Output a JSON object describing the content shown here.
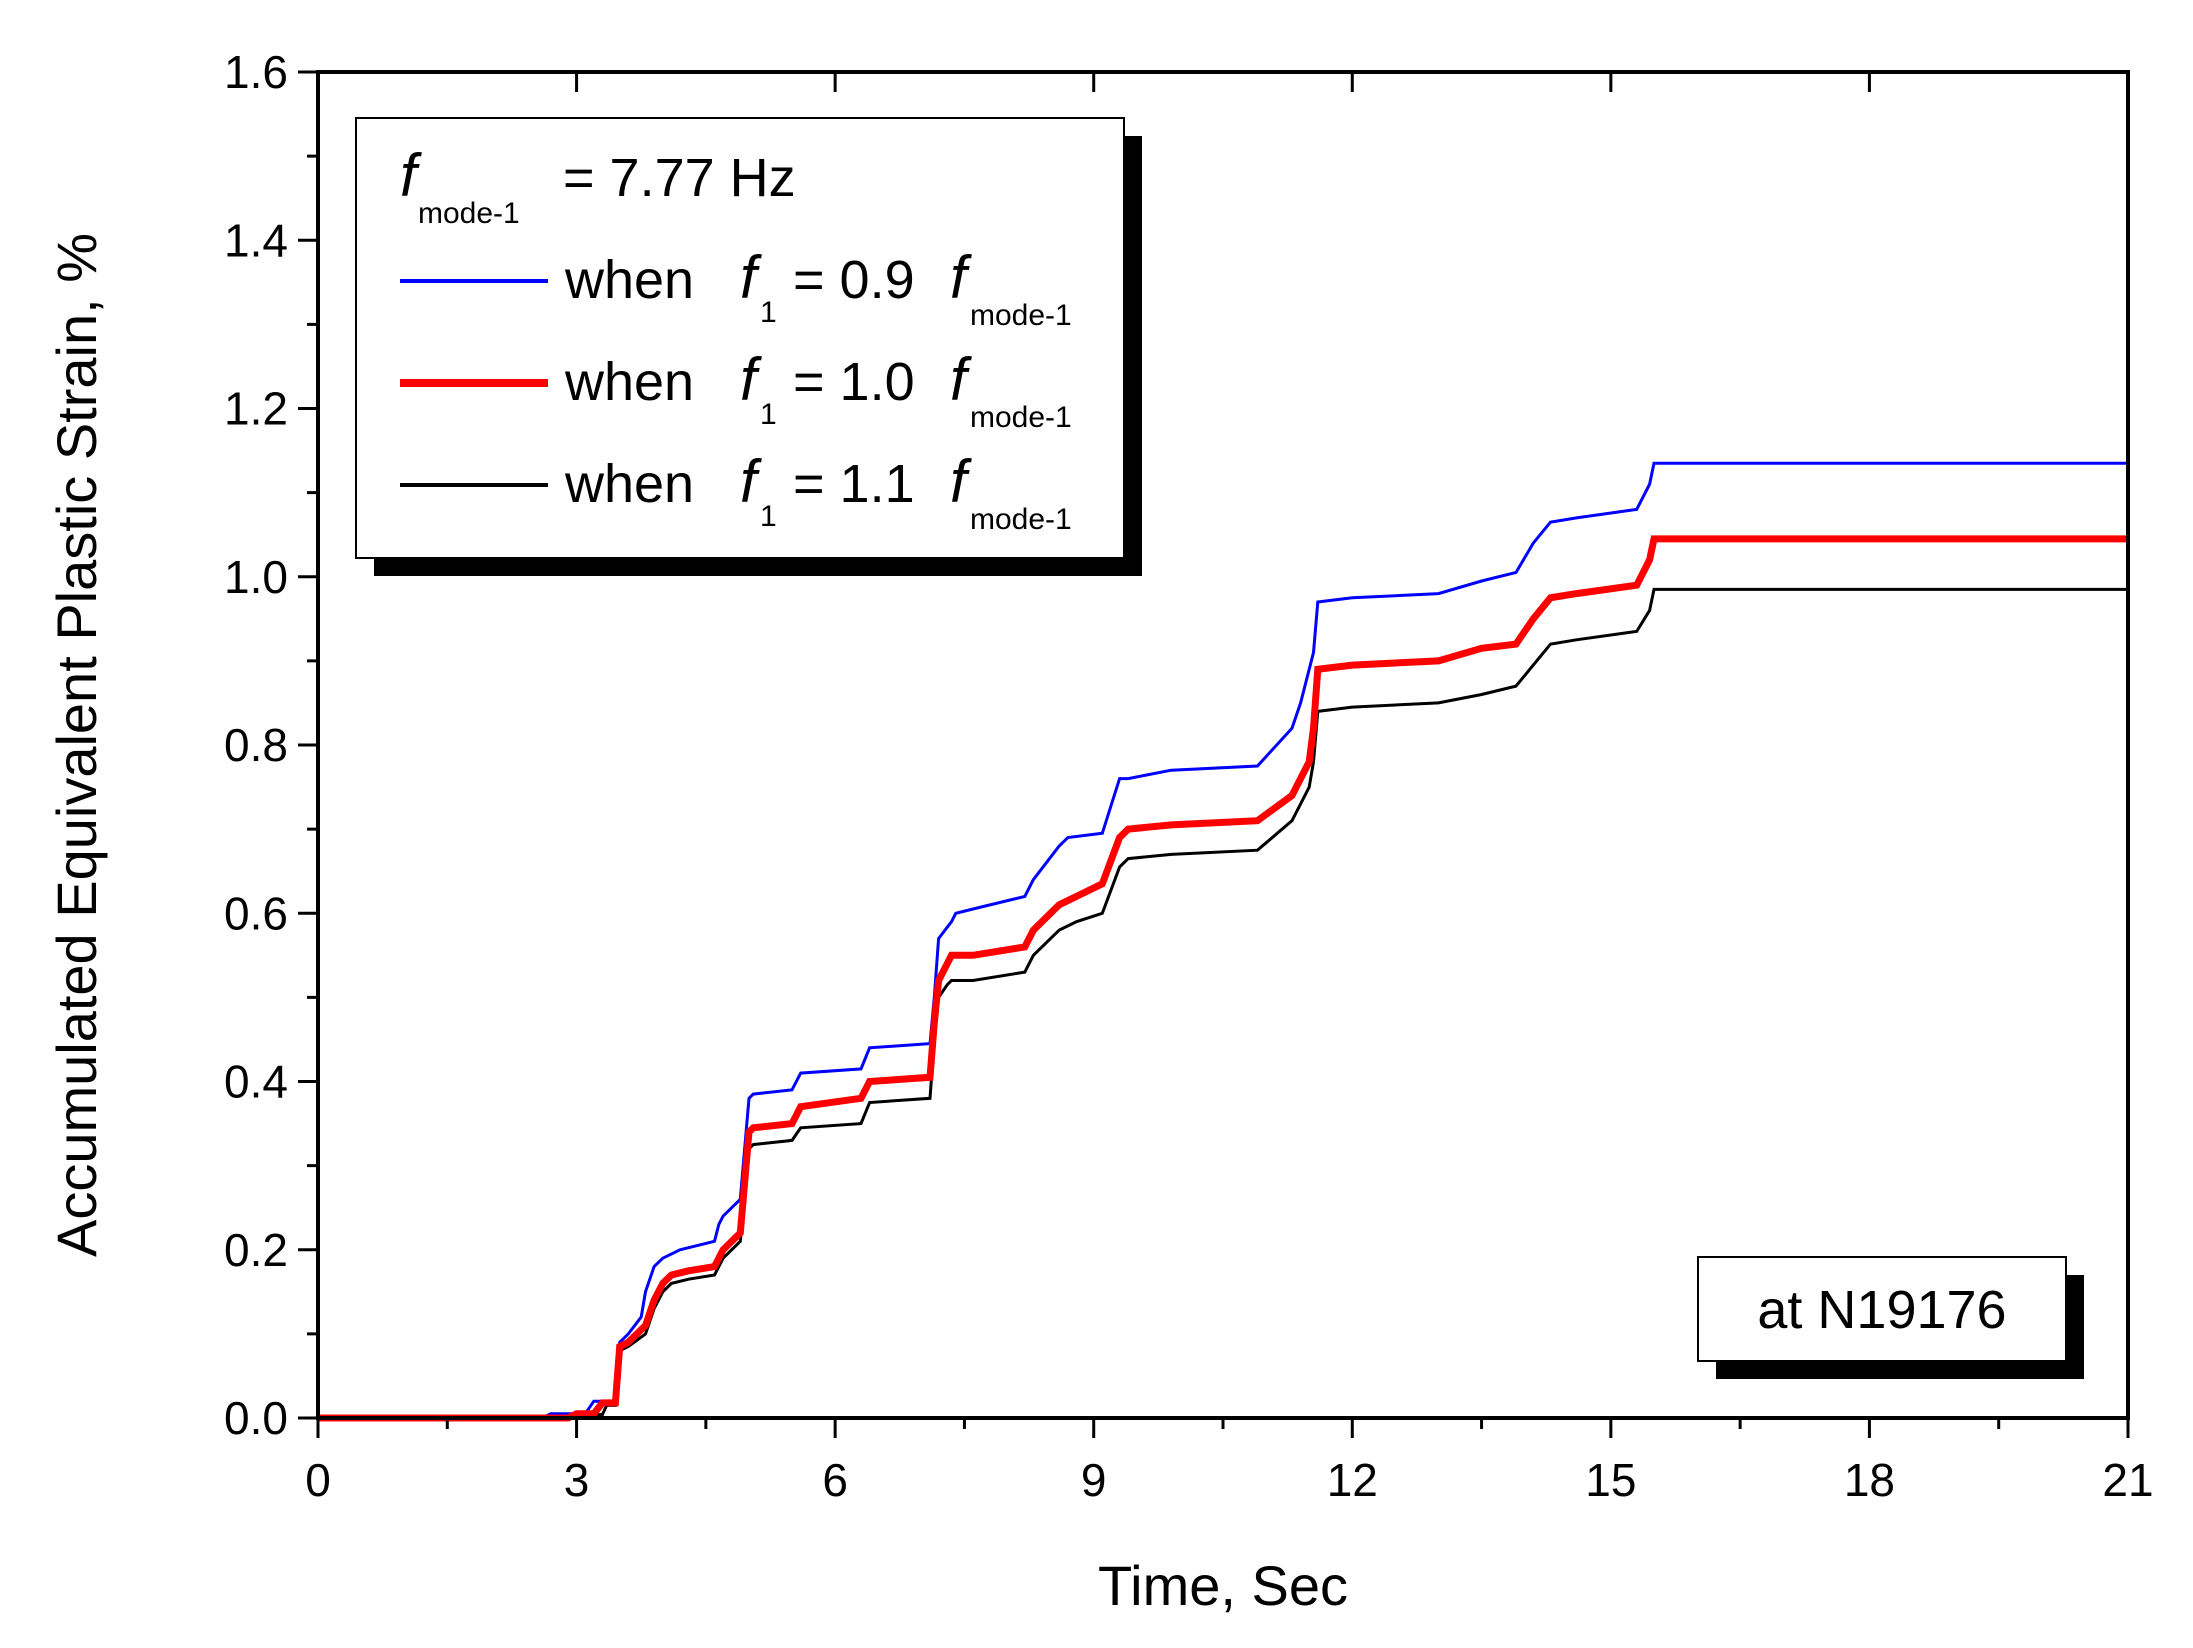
{
  "chart_data": {
    "type": "line",
    "title": "",
    "xlabel": "Time, Sec",
    "ylabel": "Accumulated Equivalent Plastic Strain, %",
    "xlim": [
      0,
      21
    ],
    "ylim": [
      0,
      1.6
    ],
    "x_ticks": [
      0,
      3,
      6,
      9,
      12,
      15,
      18,
      21
    ],
    "x_tick_labels": [
      "0",
      "3",
      "6",
      "9",
      "12",
      "15",
      "18",
      "21"
    ],
    "y_ticks": [
      0.0,
      0.2,
      0.4,
      0.6,
      0.8,
      1.0,
      1.2,
      1.4,
      1.6
    ],
    "y_tick_labels": [
      "0.0",
      "0.2",
      "0.4",
      "0.6",
      "0.8",
      "1.0",
      "1.2",
      "1.4",
      "1.6"
    ],
    "grid": false,
    "legend": {
      "placement": "top-left",
      "header": {
        "symbol": "f",
        "subscript": "mode-1",
        "text": "= 7.77 Hz"
      }
    },
    "annotation": "at N19176",
    "series": [
      {
        "name": "when f1 = 0.9fmode-1",
        "label_parts": {
          "when": "when",
          "f": "f",
          "sub1": "1",
          "eq": "= 0.9",
          "f2": "f",
          "sub2": "mode-1"
        },
        "color": "#0000ff",
        "width": "thin",
        "x": [
          0,
          2.6,
          2.7,
          3.1,
          3.2,
          3.45,
          3.5,
          3.6,
          3.75,
          3.8,
          3.9,
          4.0,
          4.2,
          4.6,
          4.65,
          4.7,
          4.9,
          5.0,
          5.05,
          5.5,
          5.6,
          6.3,
          6.4,
          7.1,
          7.15,
          7.2,
          7.35,
          7.4,
          7.6,
          8.2,
          8.3,
          8.6,
          8.7,
          9.1,
          9.3,
          9.4,
          9.9,
          10.9,
          11.3,
          11.4,
          11.45,
          11.55,
          11.6,
          12.0,
          13.0,
          13.5,
          13.9,
          14.1,
          14.3,
          14.6,
          15.3,
          15.45,
          15.5,
          21
        ],
        "y": [
          0.0,
          0.0,
          0.005,
          0.005,
          0.02,
          0.02,
          0.09,
          0.1,
          0.12,
          0.15,
          0.18,
          0.19,
          0.2,
          0.21,
          0.23,
          0.24,
          0.26,
          0.38,
          0.385,
          0.39,
          0.41,
          0.415,
          0.44,
          0.445,
          0.5,
          0.57,
          0.59,
          0.6,
          0.605,
          0.62,
          0.64,
          0.68,
          0.69,
          0.695,
          0.76,
          0.76,
          0.77,
          0.775,
          0.82,
          0.85,
          0.87,
          0.91,
          0.97,
          0.975,
          0.98,
          0.995,
          1.005,
          1.04,
          1.065,
          1.07,
          1.08,
          1.11,
          1.135,
          1.135
        ]
      },
      {
        "name": "when f1 = 1.0fmode-1",
        "label_parts": {
          "when": "when",
          "f": "f",
          "sub1": "1",
          "eq": "= 1.0",
          "f2": "f",
          "sub2": "mode-1"
        },
        "color": "#ff0000",
        "width": "thick",
        "x": [
          0,
          2.9,
          3.0,
          3.2,
          3.3,
          3.45,
          3.5,
          3.6,
          3.8,
          3.9,
          4.0,
          4.1,
          4.3,
          4.6,
          4.65,
          4.7,
          4.9,
          5.0,
          5.05,
          5.5,
          5.6,
          6.3,
          6.4,
          7.1,
          7.15,
          7.2,
          7.3,
          7.35,
          7.6,
          8.2,
          8.3,
          8.6,
          8.8,
          9.1,
          9.3,
          9.4,
          9.9,
          10.9,
          11.3,
          11.4,
          11.5,
          11.55,
          11.6,
          12.0,
          13.0,
          13.5,
          13.9,
          14.1,
          14.3,
          14.6,
          15.3,
          15.45,
          15.5,
          21
        ],
        "y": [
          0.0,
          0.0,
          0.005,
          0.005,
          0.018,
          0.018,
          0.085,
          0.09,
          0.11,
          0.14,
          0.16,
          0.17,
          0.175,
          0.18,
          0.19,
          0.2,
          0.22,
          0.34,
          0.345,
          0.35,
          0.37,
          0.38,
          0.4,
          0.405,
          0.47,
          0.52,
          0.54,
          0.55,
          0.55,
          0.56,
          0.58,
          0.61,
          0.62,
          0.635,
          0.69,
          0.7,
          0.705,
          0.71,
          0.74,
          0.76,
          0.78,
          0.82,
          0.89,
          0.895,
          0.9,
          0.915,
          0.92,
          0.95,
          0.975,
          0.98,
          0.99,
          1.02,
          1.045,
          1.045
        ]
      },
      {
        "name": "when f1 = 1.1fmode-1",
        "label_parts": {
          "when": "when",
          "f": "f",
          "sub1": "1",
          "eq": "= 1.1",
          "f2": "f",
          "sub2": "mode-1"
        },
        "color": "#000000",
        "width": "thin",
        "x": [
          0,
          3.0,
          3.1,
          3.3,
          3.35,
          3.45,
          3.5,
          3.6,
          3.8,
          3.9,
          4.0,
          4.1,
          4.3,
          4.6,
          4.65,
          4.7,
          4.9,
          5.0,
          5.05,
          5.5,
          5.6,
          6.3,
          6.4,
          7.1,
          7.15,
          7.2,
          7.3,
          7.35,
          7.6,
          8.2,
          8.3,
          8.6,
          8.8,
          9.1,
          9.3,
          9.4,
          9.9,
          10.9,
          11.3,
          11.4,
          11.5,
          11.55,
          11.6,
          12.0,
          13.0,
          13.5,
          13.9,
          14.1,
          14.3,
          14.6,
          15.3,
          15.45,
          15.5,
          21
        ],
        "y": [
          0.0,
          0.0,
          0.004,
          0.004,
          0.015,
          0.015,
          0.08,
          0.085,
          0.1,
          0.13,
          0.15,
          0.16,
          0.165,
          0.17,
          0.18,
          0.19,
          0.21,
          0.32,
          0.325,
          0.33,
          0.345,
          0.35,
          0.375,
          0.38,
          0.45,
          0.5,
          0.515,
          0.52,
          0.52,
          0.53,
          0.55,
          0.58,
          0.59,
          0.6,
          0.655,
          0.665,
          0.67,
          0.675,
          0.71,
          0.73,
          0.75,
          0.78,
          0.84,
          0.845,
          0.85,
          0.86,
          0.87,
          0.895,
          0.92,
          0.925,
          0.935,
          0.96,
          0.985,
          0.985
        ]
      }
    ]
  }
}
